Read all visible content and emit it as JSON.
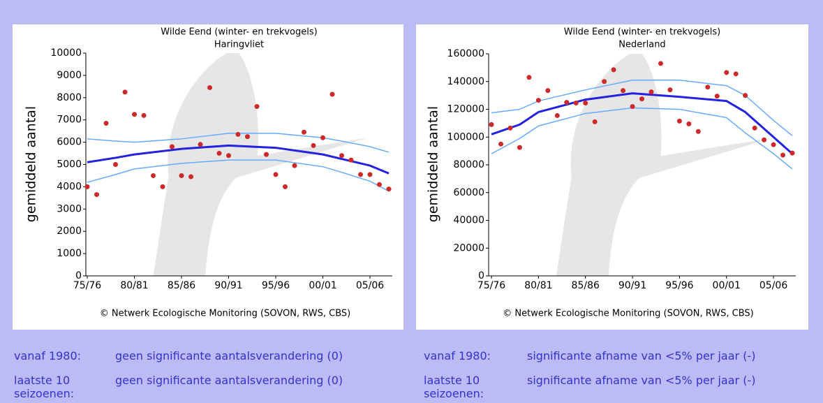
{
  "chart_data": [
    {
      "type": "scatter",
      "title": "Wilde Eend (winter- en trekvogels)",
      "subtitle": "Haringvliet",
      "y_label": "gemiddeld aantal",
      "credit": "©  Netwerk Ecologische Monitoring (SOVON, RWS, CBS)",
      "x": [
        1975,
        1976,
        1977,
        1978,
        1979,
        1980,
        1981,
        1982,
        1983,
        1984,
        1985,
        1986,
        1987,
        1988,
        1989,
        1990,
        1991,
        1992,
        1993,
        1994,
        1995,
        1996,
        1997,
        1998,
        1999,
        2000,
        2001,
        2002,
        2003,
        2004,
        2005,
        2006,
        2007
      ],
      "series": [
        {
          "color": "#cc2a2a",
          "values": [
            4000,
            3650,
            6850,
            5000,
            8250,
            7250,
            7200,
            4500,
            4000,
            5800,
            4500,
            4450,
            5900,
            8450,
            5500,
            5400,
            6350,
            6250,
            7600,
            5450,
            4550,
            4000,
            4950,
            6450,
            5850,
            6200,
            8150,
            5400,
            5200,
            4550,
            4550,
            4100,
            3900
          ]
        }
      ],
      "trend": {
        "x": [
          1975,
          1978,
          1980,
          1985,
          1990,
          1995,
          2000,
          2002,
          2005,
          2007
        ],
        "series": [
          {
            "color": "#2222e0",
            "values": [
              5100,
              5300,
              5450,
              5700,
              5850,
              5750,
              5450,
              5250,
              4950,
              4600
            ]
          },
          {
            "color": "#66aaff",
            "values": [
              6150,
              6050,
              6000,
              6150,
              6400,
              6400,
              6200,
              6050,
              5800,
              5550
            ]
          },
          {
            "color": "#66aaff",
            "values": [
              4200,
              4550,
              4800,
              5050,
              5200,
              5200,
              4900,
              4650,
              4250,
              3800
            ]
          }
        ]
      },
      "xlim": [
        1974.85,
        2007.37
      ],
      "ylim": [
        0,
        10000
      ],
      "xticks": [
        {
          "value": 1975,
          "label": "75/76"
        },
        {
          "value": 1980,
          "label": "80/81"
        },
        {
          "value": 1985,
          "label": "85/86"
        },
        {
          "value": 1990,
          "label": "90/91"
        },
        {
          "value": 1995,
          "label": "95/96"
        },
        {
          "value": 2000,
          "label": "00/01"
        },
        {
          "value": 2005,
          "label": "05/06"
        }
      ],
      "yticks": [
        0,
        1000,
        2000,
        3000,
        4000,
        5000,
        6000,
        7000,
        8000,
        9000,
        10000
      ]
    },
    {
      "type": "scatter",
      "title": "Wilde Eend (winter- en trekvogels)",
      "subtitle": "Nederland",
      "y_label": "gemiddeld aantal",
      "credit": "©  Netwerk Ecologische Monitoring (SOVON, RWS, CBS)",
      "x": [
        1975,
        1976,
        1977,
        1978,
        1979,
        1980,
        1981,
        1982,
        1983,
        1984,
        1985,
        1986,
        1987,
        1988,
        1989,
        1990,
        1991,
        1992,
        1993,
        1994,
        1995,
        1996,
        1997,
        1998,
        1999,
        2000,
        2001,
        2002,
        2003,
        2004,
        2005,
        2006,
        2007
      ],
      "series": [
        {
          "color": "#cc2a2a",
          "values": [
            109000,
            95000,
            106500,
            92500,
            143000,
            126500,
            133500,
            115500,
            125000,
            124500,
            124500,
            111000,
            140000,
            148500,
            133500,
            122000,
            127500,
            132500,
            153000,
            134000,
            111500,
            109500,
            104000,
            136000,
            129500,
            146500,
            145500,
            130000,
            106500,
            98000,
            94500,
            87000,
            88500
          ]
        }
      ],
      "trend": {
        "x": [
          1975,
          1978,
          1980,
          1985,
          1990,
          1995,
          2000,
          2002,
          2005,
          2007
        ],
        "series": [
          {
            "color": "#2222e0",
            "values": [
              102000,
              109000,
              118000,
              127000,
              131500,
              129000,
              126000,
              118000,
              100000,
              88000
            ]
          },
          {
            "color": "#66aaff",
            "values": [
              117500,
              120000,
              126000,
              134000,
              141000,
              141000,
              137000,
              130000,
              112000,
              101000
            ]
          },
          {
            "color": "#66aaff",
            "values": [
              88000,
              99000,
              108000,
              117000,
              121000,
              120000,
              114000,
              103000,
              88000,
              77000
            ]
          }
        ]
      },
      "xlim": [
        1974.7,
        2007.37
      ],
      "ylim": [
        0,
        160000
      ],
      "xticks": [
        {
          "value": 1975,
          "label": "75/76"
        },
        {
          "value": 1980,
          "label": "80/81"
        },
        {
          "value": 1985,
          "label": "85/86"
        },
        {
          "value": 1990,
          "label": "90/91"
        },
        {
          "value": 1995,
          "label": "95/96"
        },
        {
          "value": 2000,
          "label": "00/01"
        },
        {
          "value": 2005,
          "label": "05/06"
        }
      ],
      "yticks": [
        0,
        20000,
        40000,
        60000,
        80000,
        100000,
        120000,
        140000,
        160000
      ]
    }
  ],
  "summaries": [
    [
      {
        "label": "vanaf 1980:",
        "text": "geen significante aantalsverandering (0)"
      },
      {
        "label": "laatste 10 seizoenen:",
        "text": "geen significante aantalsverandering (0)"
      }
    ],
    [
      {
        "label": "vanaf 1980:",
        "text": "significante afname van <5% per jaar (-)"
      },
      {
        "label": "laatste 10 seizoenen:",
        "text": "significante afname van <5% per jaar (-)"
      }
    ]
  ]
}
